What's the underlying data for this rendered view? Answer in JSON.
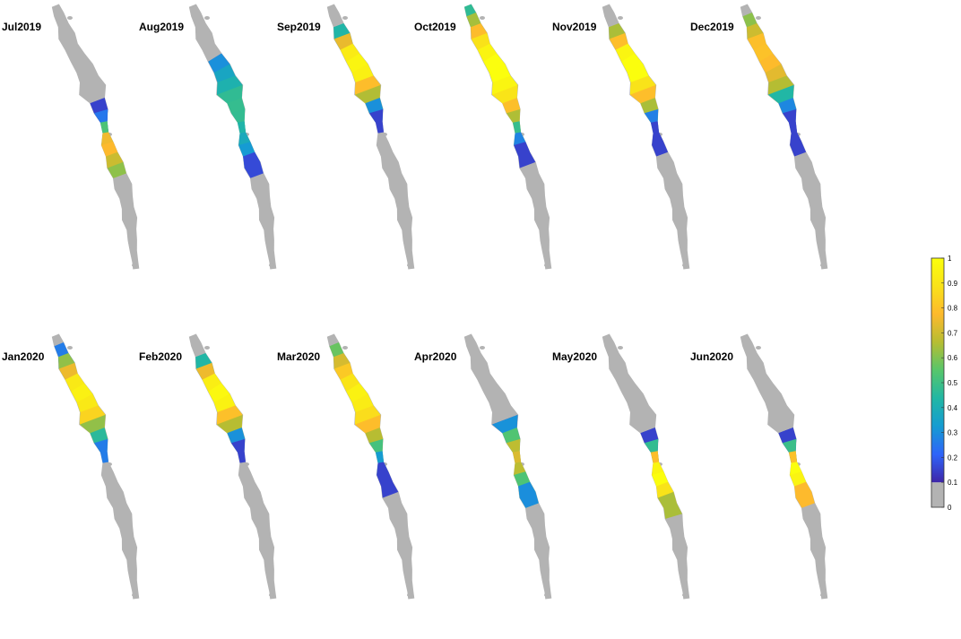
{
  "panels": [
    {
      "title": "Jul2019",
      "band": [
        0.38,
        0.62
      ],
      "peak": 0.55,
      "max": 0.78,
      "edge": 0.15
    },
    {
      "title": "Aug2019",
      "band": [
        0.2,
        0.62
      ],
      "peak": 0.4,
      "max": 0.48,
      "edge": 0.15
    },
    {
      "title": "Sep2019",
      "band": [
        0.1,
        0.44
      ],
      "peak": 0.25,
      "max": 0.97,
      "edge": 0.15
    },
    {
      "title": "Oct2019",
      "band": [
        0.0,
        0.58
      ],
      "peak": 0.25,
      "max": 1.0,
      "edge": 0.15
    },
    {
      "title": "Nov2019",
      "band": [
        0.1,
        0.52
      ],
      "peak": 0.25,
      "max": 1.0,
      "edge": 0.15
    },
    {
      "title": "Dec2019",
      "band": [
        0.06,
        0.52
      ],
      "peak": 0.2,
      "max": 0.8,
      "edge": 0.15
    },
    {
      "title": "Jan2020",
      "band": [
        0.06,
        0.44
      ],
      "peak": 0.25,
      "max": 0.95,
      "edge": 0.15
    },
    {
      "title": "Feb2020",
      "band": [
        0.1,
        0.44
      ],
      "peak": 0.25,
      "max": 0.98,
      "edge": 0.15
    },
    {
      "title": "Mar2020",
      "band": [
        0.06,
        0.56
      ],
      "peak": 0.25,
      "max": 0.95,
      "edge": 0.15
    },
    {
      "title": "Apr2020",
      "band": [
        0.32,
        0.62
      ],
      "peak": 0.48,
      "max": 0.72,
      "edge": 0.15
    },
    {
      "title": "May2020",
      "band": [
        0.36,
        0.64
      ],
      "peak": 0.54,
      "max": 1.0,
      "edge": 0.15
    },
    {
      "title": "Jun2020",
      "band": [
        0.36,
        0.6
      ],
      "peak": 0.53,
      "max": 1.0,
      "edge": 0.15
    }
  ],
  "colorbar": {
    "ticks": [
      "0",
      "0.1",
      "0.2",
      "0.3",
      "0.4",
      "0.5",
      "0.6",
      "0.7",
      "0.8",
      "0.9",
      "1"
    ],
    "range": [
      0,
      1
    ],
    "no_data_threshold": 0.1,
    "no_data_color": "#b3b3b3",
    "colormap": [
      "#3e26a8",
      "#2e64f9",
      "#159cd2",
      "#21b7a4",
      "#57c66b",
      "#b6bd32",
      "#fdb92d",
      "#f9e219",
      "#fbff0d"
    ]
  },
  "colors": {
    "land_mask": "#b3b3b3",
    "background": "#ffffff"
  }
}
